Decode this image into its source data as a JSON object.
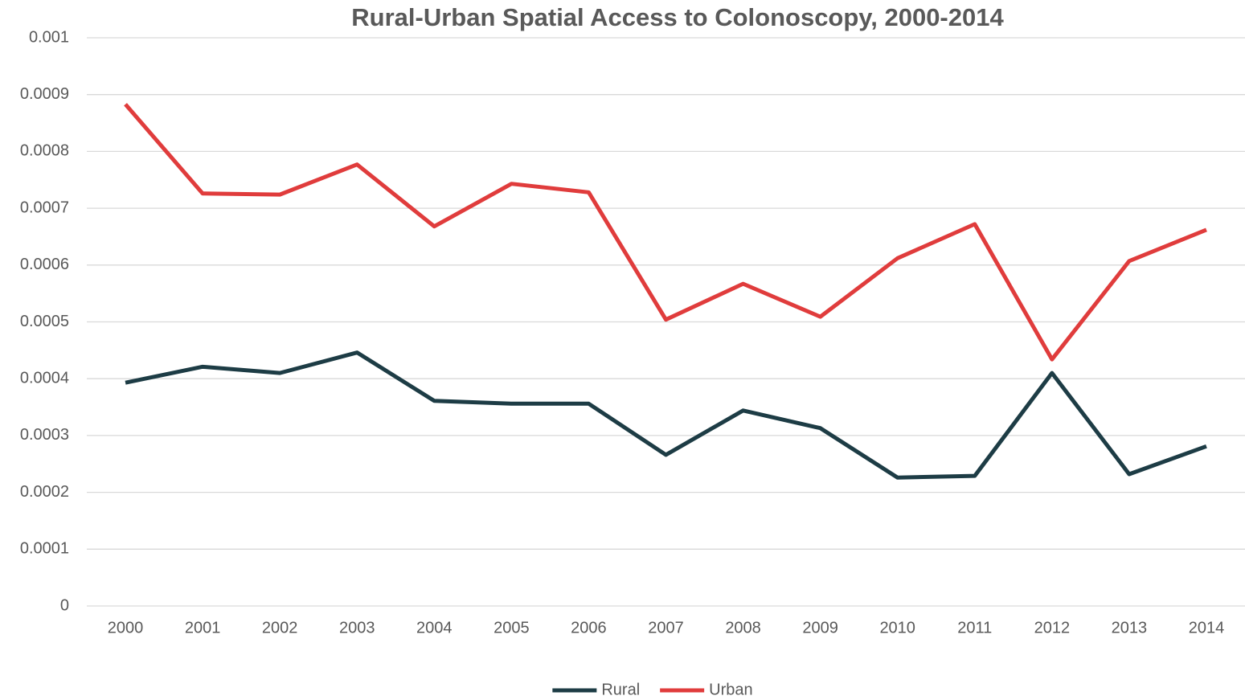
{
  "chart_data": {
    "type": "line",
    "title": "Rural-Urban Spatial Access to Colonoscopy, 2000-2014",
    "categories": [
      "2000",
      "2001",
      "2002",
      "2003",
      "2004",
      "2005",
      "2006",
      "2007",
      "2008",
      "2009",
      "2010",
      "2011",
      "2012",
      "2013",
      "2014"
    ],
    "series": [
      {
        "name": "Rural",
        "color": "#1d3c45",
        "values": [
          0.000393,
          0.000421,
          0.00041,
          0.000446,
          0.000361,
          0.000356,
          0.000356,
          0.000266,
          0.000344,
          0.000313,
          0.000226,
          0.000229,
          0.00041,
          0.000232,
          0.000281
        ]
      },
      {
        "name": "Urban",
        "color": "#e03c3c",
        "values": [
          0.000883,
          0.000726,
          0.000724,
          0.000777,
          0.000668,
          0.000743,
          0.000728,
          0.000504,
          0.000567,
          0.000509,
          0.000612,
          0.000672,
          0.000434,
          0.000607,
          0.000662
        ]
      }
    ],
    "ylim": [
      0,
      0.001
    ],
    "yticks": [
      0,
      0.0001,
      0.0002,
      0.0003,
      0.0004,
      0.0005,
      0.0006,
      0.0007,
      0.0008,
      0.0009,
      0.001
    ],
    "grid": true,
    "legend": "bottom"
  }
}
